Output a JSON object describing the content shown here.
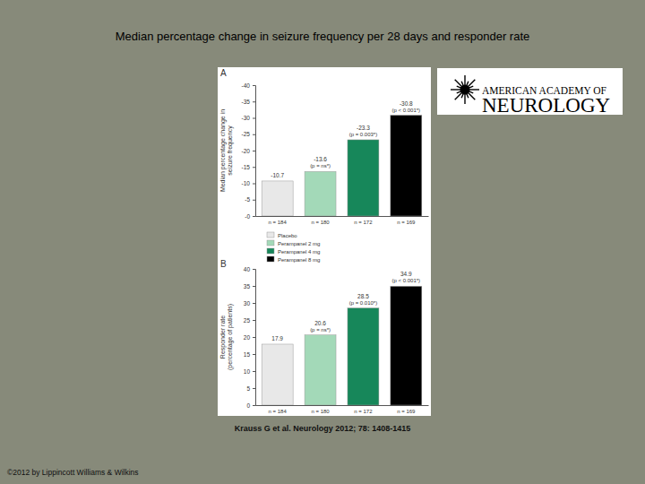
{
  "page": {
    "title": "Median percentage change in seizure frequency per 28 days and responder rate",
    "citation": "Krauss G et al. Neurology 2012; 78: 1408-1415",
    "copyright": "©2012 by Lippincott Williams & Wilkins",
    "logo": [
      "AMERICAN ACADEMY OF",
      "NEUROLOGY"
    ],
    "legend": [
      {
        "name": "Placebo",
        "color": "#e8e8e8"
      },
      {
        "name": "Perampanel 2 mg",
        "color": "#a3d9b8"
      },
      {
        "name": "Perampanel 4 mg",
        "color": "#17875a"
      },
      {
        "name": "Perampanel 8 mg",
        "color": "#000000"
      }
    ]
  },
  "chart_data": [
    {
      "type": "bar",
      "title": "A",
      "ylabel": [
        "Median percentage change in",
        "seizure frequency"
      ],
      "categories": [
        "n = 184",
        "n = 180",
        "n = 172",
        "n = 169"
      ],
      "values": [
        -10.7,
        -13.6,
        -23.3,
        -30.8
      ],
      "colors": [
        "#e8e8e8",
        "#a3d9b8",
        "#17875a",
        "#000000"
      ],
      "annotations": [
        null,
        "(p = ns*)",
        "(p = 0.003*)",
        "(p < 0.001*)"
      ],
      "data_labels": true,
      "grid": false,
      "ylim": [
        0,
        -40
      ],
      "yticks": [
        {
          "value": 0,
          "label": "-0"
        },
        -5,
        -10,
        -15,
        -20,
        -25,
        -30,
        -35,
        -40
      ]
    },
    {
      "type": "bar",
      "title": "B",
      "ylabel": [
        "Responder rate",
        "(percentage of patients)"
      ],
      "categories": [
        "n = 184",
        "n = 180",
        "n = 172",
        "n = 169"
      ],
      "values": [
        17.9,
        20.6,
        28.5,
        34.9
      ],
      "colors": [
        "#e8e8e8",
        "#a3d9b8",
        "#17875a",
        "#000000"
      ],
      "annotations": [
        null,
        "(p = ns*)",
        "(p = 0.010*)",
        "(p < 0.001*)"
      ],
      "data_labels": true,
      "grid": false,
      "ylim": [
        0,
        40
      ],
      "yticks": [
        0,
        5,
        10,
        15,
        20,
        25,
        30,
        35,
        40
      ]
    }
  ]
}
